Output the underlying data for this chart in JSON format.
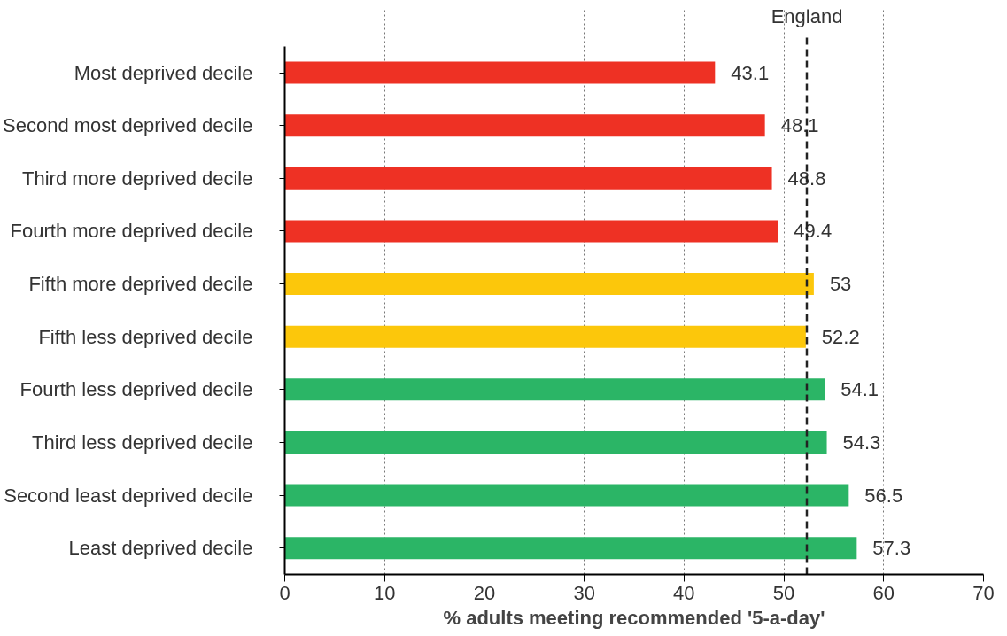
{
  "chart_data": {
    "type": "bar",
    "orientation": "horizontal",
    "xlabel": "% adults meeting recommended '5-a-day'",
    "categories": [
      "Most deprived decile",
      "Second most deprived decile",
      "Third more deprived decile",
      "Fourth more deprived decile",
      "Fifth more deprived decile",
      "Fifth less deprived decile",
      "Fourth less deprived decile",
      "Third less deprived decile",
      "Second least deprived decile",
      "Least deprived decile"
    ],
    "values": [
      43.1,
      48.1,
      48.8,
      49.4,
      53,
      52.2,
      54.1,
      54.3,
      56.5,
      57.3
    ],
    "colors": [
      "#ee3124",
      "#ee3124",
      "#ee3124",
      "#ee3124",
      "#fcc70b",
      "#fcc70b",
      "#2bb566",
      "#2bb566",
      "#2bb566",
      "#2bb566"
    ],
    "data_labels": true,
    "xlim": [
      0,
      70
    ],
    "xticks": [
      0,
      10,
      20,
      30,
      40,
      50,
      60,
      70
    ],
    "grid": "x",
    "ref_lines": [
      {
        "axis": "x",
        "value": 52.3,
        "label": "England",
        "color": "#222222",
        "line_style": "dashed"
      }
    ]
  }
}
